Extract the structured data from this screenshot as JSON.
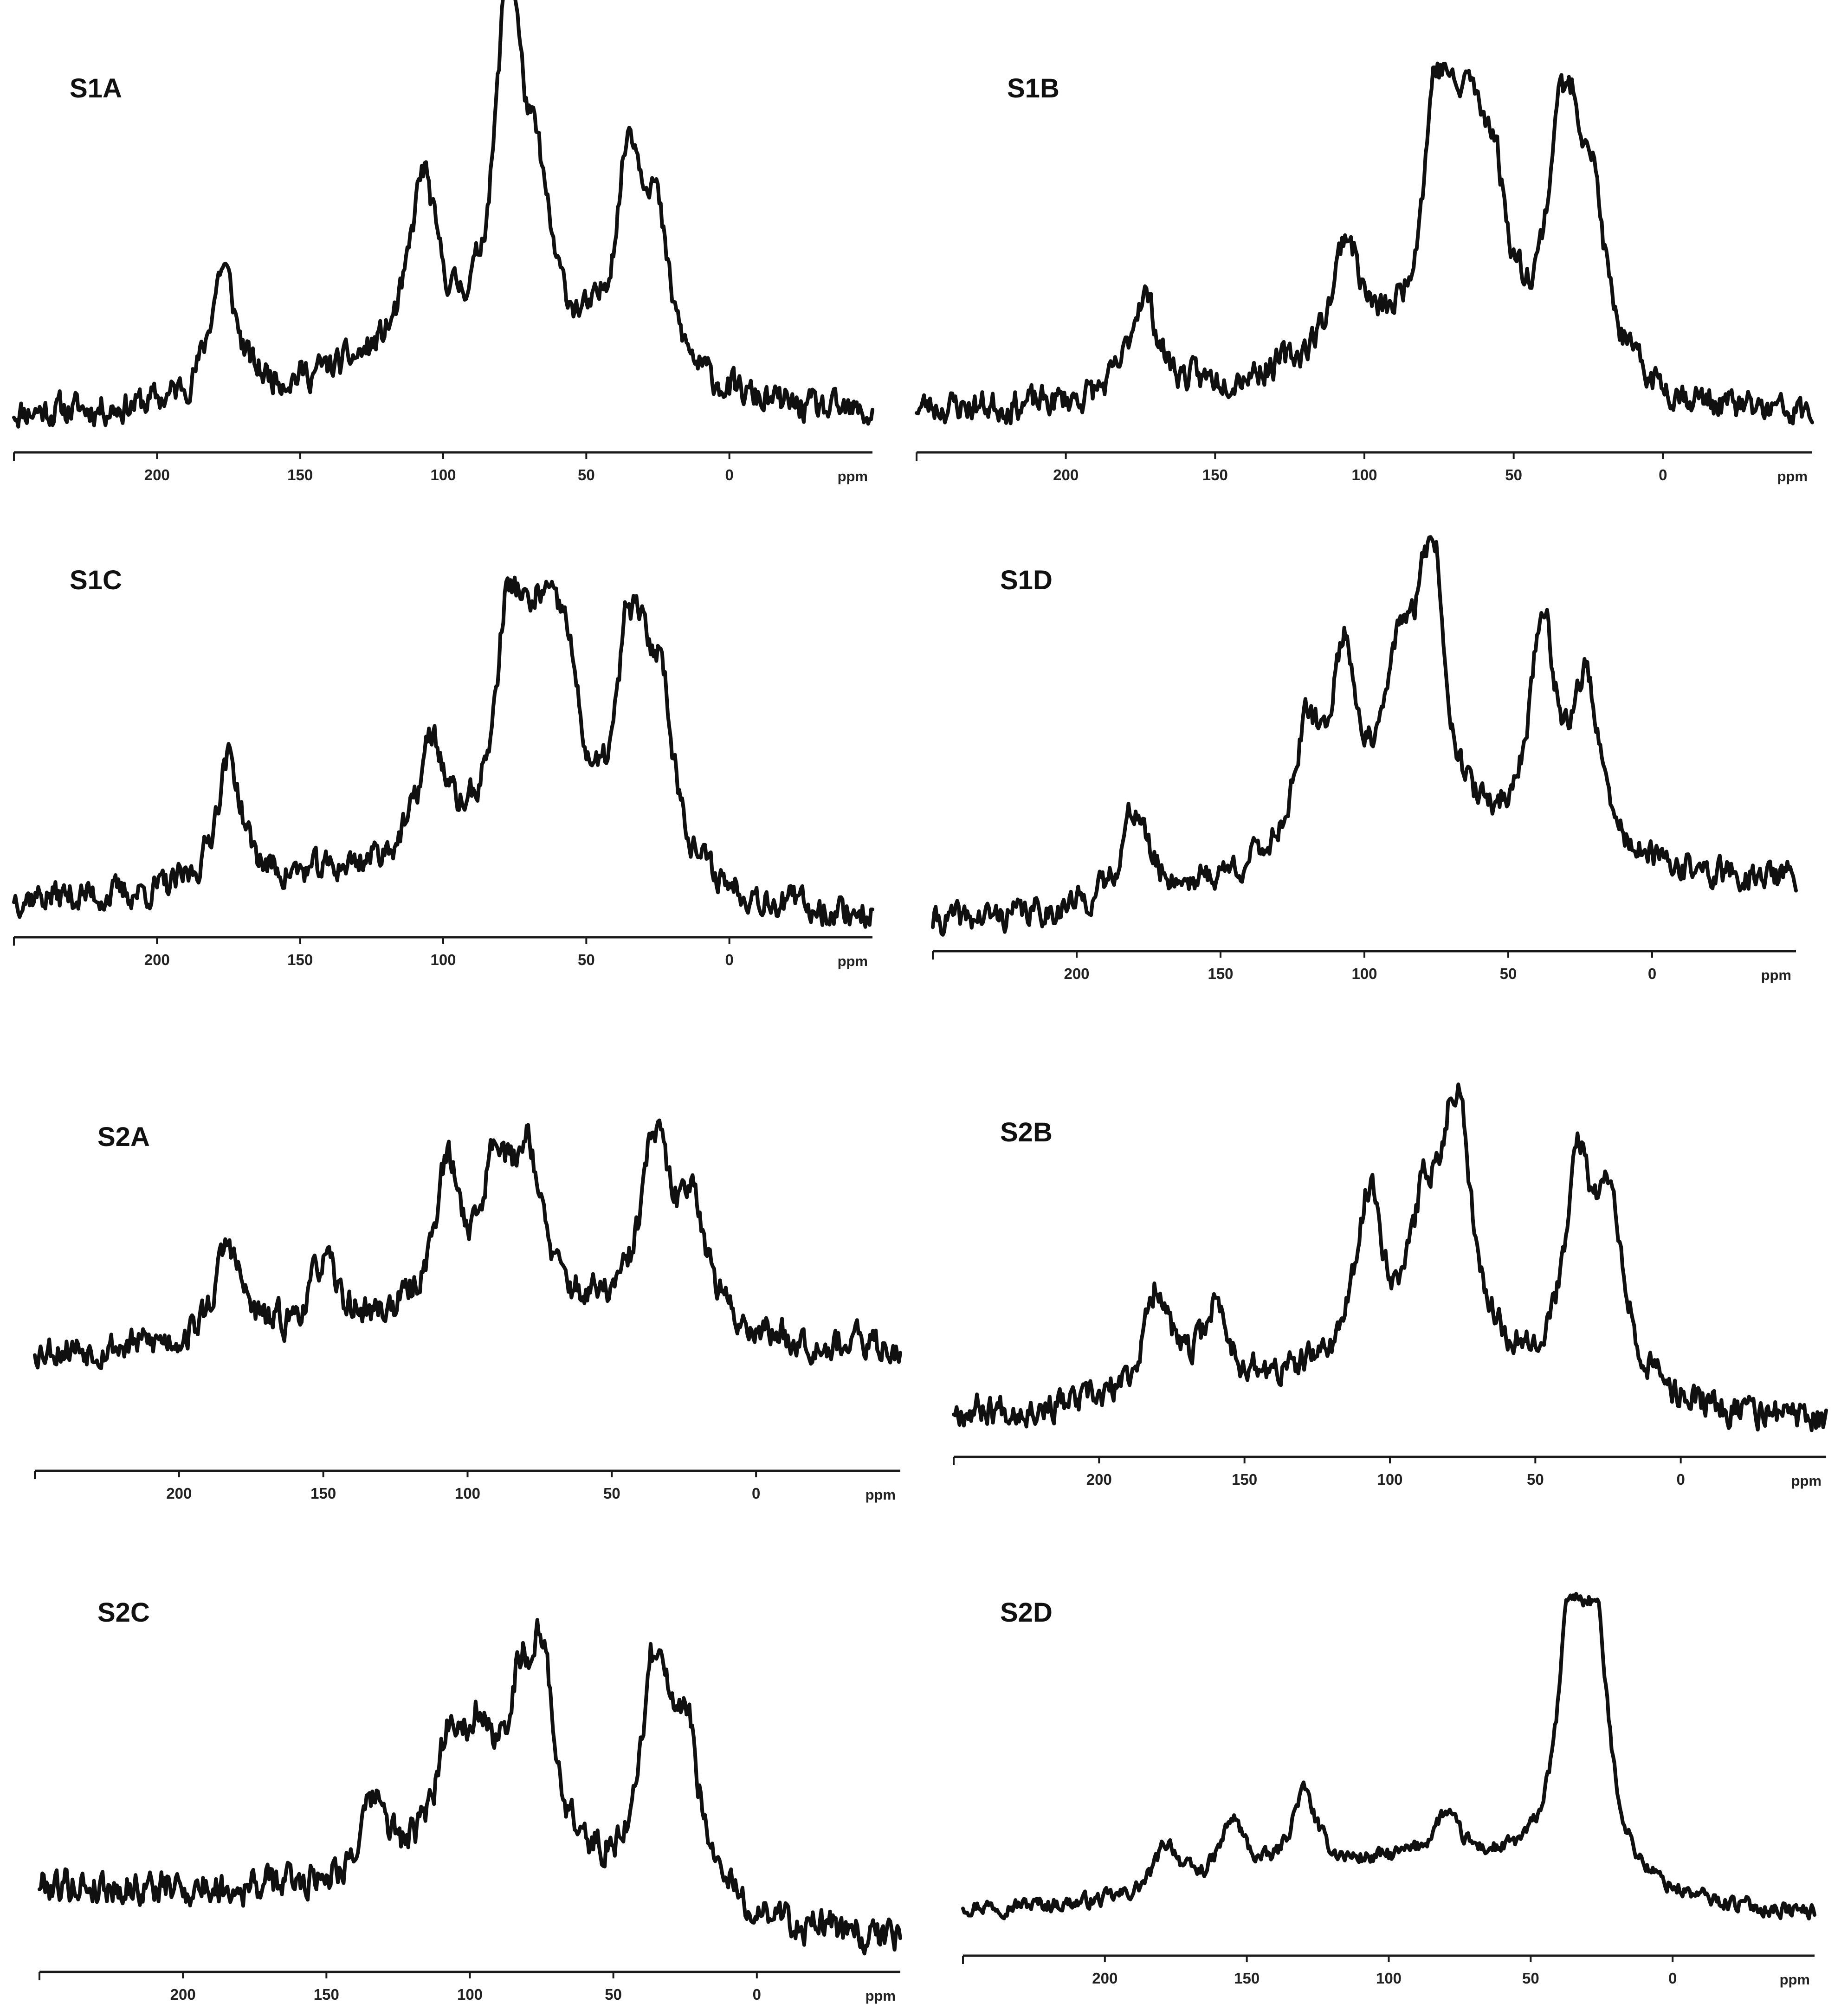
{
  "figure": {
    "x_unit_label": "ppm",
    "x_reversed": true,
    "xlim": [
      -50,
      250
    ],
    "x_ticks": [
      200,
      150,
      100,
      50,
      0
    ]
  },
  "chart_data": [
    {
      "type": "line",
      "title": "S1A",
      "xlabel": "ppm",
      "ylabel": "",
      "xlim": [
        -50,
        250
      ],
      "ylim": [
        0,
        1
      ],
      "peaks": [
        {
          "x": 77,
          "y": 1.0
        },
        {
          "x": 35,
          "y": 0.55
        },
        {
          "x": 107,
          "y": 0.47
        },
        {
          "x": 177,
          "y": 0.36
        },
        {
          "x": 67,
          "y": 0.33
        },
        {
          "x": 26,
          "y": 0.38
        }
      ]
    },
    {
      "type": "line",
      "title": "S1B",
      "xlabel": "ppm",
      "ylabel": "",
      "xlim": [
        -50,
        250
      ],
      "ylim": [
        0,
        1
      ],
      "peaks": [
        {
          "x": 75,
          "y": 0.95
        },
        {
          "x": 33,
          "y": 0.97
        },
        {
          "x": 65,
          "y": 0.56
        },
        {
          "x": 57,
          "y": 0.5
        },
        {
          "x": 24,
          "y": 0.52
        },
        {
          "x": 106,
          "y": 0.4
        },
        {
          "x": 174,
          "y": 0.35
        }
      ]
    },
    {
      "type": "line",
      "title": "S1C",
      "xlabel": "ppm",
      "ylabel": "",
      "xlim": [
        -50,
        250
      ],
      "ylim": [
        0,
        1
      ],
      "peaks": [
        {
          "x": 76,
          "y": 1.0
        },
        {
          "x": 34,
          "y": 0.95
        },
        {
          "x": 65,
          "y": 0.63
        },
        {
          "x": 57,
          "y": 0.56
        },
        {
          "x": 24,
          "y": 0.6
        },
        {
          "x": 175,
          "y": 0.48
        },
        {
          "x": 104,
          "y": 0.4
        }
      ]
    },
    {
      "type": "line",
      "title": "S1D",
      "xlabel": "ppm",
      "ylabel": "",
      "xlim": [
        -50,
        250
      ],
      "ylim": [
        0,
        1
      ],
      "peaks": [
        {
          "x": 77,
          "y": 1.0
        },
        {
          "x": 107,
          "y": 0.6
        },
        {
          "x": 38,
          "y": 0.73
        },
        {
          "x": 23,
          "y": 0.55
        },
        {
          "x": 120,
          "y": 0.36
        },
        {
          "x": 180,
          "y": 0.3
        },
        {
          "x": 88,
          "y": 0.48
        }
      ]
    },
    {
      "type": "line",
      "title": "S2A",
      "xlabel": "ppm",
      "ylabel": "",
      "xlim": [
        -50,
        250
      ],
      "ylim": [
        0,
        1
      ],
      "peaks": [
        {
          "x": 35,
          "y": 1.0
        },
        {
          "x": 79,
          "y": 0.77
        },
        {
          "x": 107,
          "y": 0.73
        },
        {
          "x": 90,
          "y": 0.73
        },
        {
          "x": 183,
          "y": 0.5
        },
        {
          "x": 22,
          "y": 0.65
        },
        {
          "x": 150,
          "y": 0.35
        }
      ]
    },
    {
      "type": "line",
      "title": "S2B",
      "xlabel": "ppm",
      "ylabel": "",
      "xlim": [
        -50,
        250
      ],
      "ylim": [
        0,
        1
      ],
      "peaks": [
        {
          "x": 77,
          "y": 1.0
        },
        {
          "x": 35,
          "y": 0.73
        },
        {
          "x": 107,
          "y": 0.6
        },
        {
          "x": 24,
          "y": 0.63
        },
        {
          "x": 88,
          "y": 0.46
        },
        {
          "x": 180,
          "y": 0.4
        },
        {
          "x": 160,
          "y": 0.3
        }
      ]
    },
    {
      "type": "line",
      "title": "S2C",
      "xlabel": "ppm",
      "ylabel": "",
      "xlim": [
        -50,
        250
      ],
      "ylim": [
        0,
        1
      ],
      "peaks": [
        {
          "x": 35,
          "y": 1.0
        },
        {
          "x": 75,
          "y": 0.73
        },
        {
          "x": 83,
          "y": 0.55
        },
        {
          "x": 107,
          "y": 0.47
        },
        {
          "x": 97,
          "y": 0.45
        },
        {
          "x": 24,
          "y": 0.55
        },
        {
          "x": 133,
          "y": 0.28
        }
      ]
    },
    {
      "type": "line",
      "title": "S2D",
      "xlabel": "ppm",
      "ylabel": "",
      "xlim": [
        -50,
        250
      ],
      "ylim": [
        0,
        1
      ],
      "peaks": [
        {
          "x": 35,
          "y": 1.0
        },
        {
          "x": 27,
          "y": 0.72
        },
        {
          "x": 130,
          "y": 0.28
        },
        {
          "x": 155,
          "y": 0.22
        },
        {
          "x": 178,
          "y": 0.18
        },
        {
          "x": 80,
          "y": 0.15
        }
      ]
    }
  ]
}
